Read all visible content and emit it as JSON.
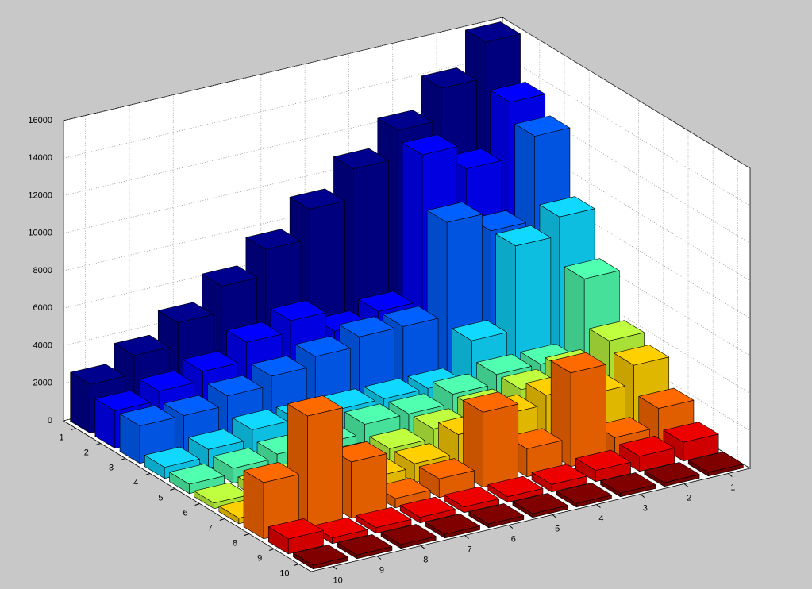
{
  "chart_data": {
    "type": "bar3",
    "xticks": [
      1,
      2,
      3,
      4,
      5,
      6,
      7,
      8,
      9,
      10
    ],
    "yticks": [
      1,
      2,
      3,
      4,
      5,
      6,
      7,
      8,
      9,
      10
    ],
    "zlim": [
      0,
      16000
    ],
    "zticks": [
      0,
      2000,
      4000,
      6000,
      8000,
      10000,
      12000,
      14000,
      16000
    ],
    "grid": true,
    "series": [
      {
        "color": "#00008f",
        "values": [
          15900,
          14000,
          12300,
          10800,
          9200,
          7600,
          6200,
          4800,
          3600,
          2600
        ]
      },
      {
        "color": "#0000ff",
        "values": [
          13500,
          10500,
          11800,
          4000,
          3500,
          4600,
          4000,
          3000,
          2500,
          2000
        ]
      },
      {
        "color": "#0060ff",
        "values": [
          12500,
          8000,
          9000,
          4000,
          4000,
          3500,
          3000,
          2500,
          2000,
          2000
        ]
      },
      {
        "color": "#10d8ff",
        "values": [
          9000,
          8000,
          3500,
          1500,
          1500,
          1500,
          1500,
          1500,
          1000,
          600
        ]
      },
      {
        "color": "#50ffb0",
        "values": [
          6500,
          2500,
          2500,
          2000,
          1500,
          1500,
          1000,
          1000,
          800,
          500
        ]
      },
      {
        "color": "#c0ff40",
        "values": [
          4000,
          3000,
          2500,
          2000,
          1500,
          1000,
          800,
          600,
          500,
          300
        ]
      },
      {
        "color": "#ffd000",
        "values": [
          3500,
          2500,
          3000,
          2500,
          2000,
          1000,
          800,
          600,
          400,
          300
        ]
      },
      {
        "color": "#ff6a00",
        "values": [
          2000,
          1000,
          5000,
          1500,
          4000,
          1000,
          500,
          3000,
          6000,
          3000
        ]
      },
      {
        "color": "#ee0000",
        "values": [
          1000,
          800,
          600,
          400,
          300,
          300,
          300,
          300,
          300,
          800
        ]
      },
      {
        "color": "#800000",
        "values": [
          200,
          200,
          200,
          200,
          200,
          200,
          200,
          200,
          200,
          200
        ]
      }
    ]
  }
}
